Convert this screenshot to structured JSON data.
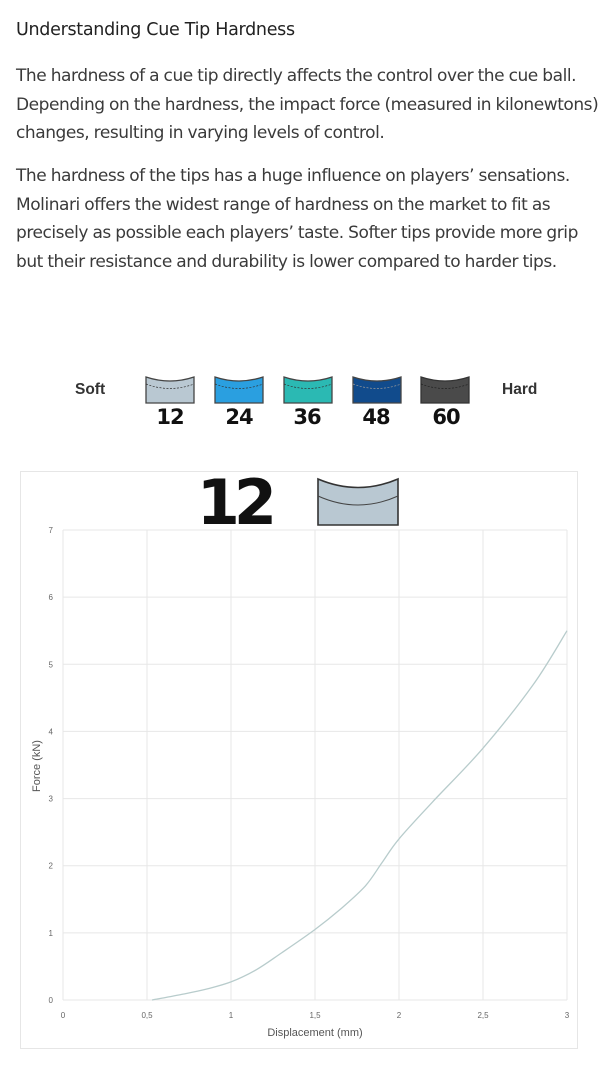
{
  "article": {
    "heading": "Understanding Cue Tip Hardness",
    "paragraph1": "The hardness of a cue tip directly affects the control over the cue ball. Depending on the hardness, the impact force (measured in kilonewtons) changes, resulting in varying levels of control.",
    "paragraph2": "The hardness of the tips has a huge influence on players’ sensations. Molinari offers the widest range of hardness on the market to fit as precisely as possible each players’ taste. Softer tips provide more grip but their resistance and durability is lower compared to harder tips."
  },
  "hardness_scale": {
    "soft_label": "Soft",
    "hard_label": "Hard",
    "tips": [
      {
        "number": "12",
        "color": "#b9c8d2"
      },
      {
        "number": "24",
        "color": "#2a9fe0"
      },
      {
        "number": "36",
        "color": "#2bb9b3"
      },
      {
        "number": "48",
        "color": "#114b8c"
      },
      {
        "number": "60",
        "color": "#4a4a4a"
      }
    ]
  },
  "chart_header": {
    "tip_number": "12",
    "tip_color": "#b9c8d2"
  },
  "chart_data": {
    "type": "line",
    "title": "",
    "xlabel": "Displacement (mm)",
    "ylabel": "Force (kN)",
    "xlim": [
      0,
      3
    ],
    "ylim": [
      0,
      7
    ],
    "xticks": [
      0,
      0.5,
      1,
      1.5,
      2,
      2.5,
      3
    ],
    "xtick_labels": [
      "0",
      "0,5",
      "1",
      "1,5",
      "2",
      "2,5",
      "3"
    ],
    "yticks": [
      0,
      1,
      2,
      3,
      4,
      5,
      6,
      7
    ],
    "ytick_labels": [
      "0",
      "1",
      "2",
      "3",
      "4",
      "5",
      "6",
      "7"
    ],
    "grid": true,
    "line_color": "#b8cccc",
    "series": [
      {
        "x": [
          0.53,
          0.7,
          0.85,
          1.0,
          1.15,
          1.3,
          1.5,
          1.65,
          1.8,
          1.9,
          2.0,
          2.2,
          2.5,
          2.8,
          3.0
        ],
        "y": [
          0.0,
          0.08,
          0.16,
          0.27,
          0.45,
          0.7,
          1.05,
          1.35,
          1.7,
          2.05,
          2.4,
          2.95,
          3.75,
          4.7,
          5.5
        ]
      }
    ]
  }
}
